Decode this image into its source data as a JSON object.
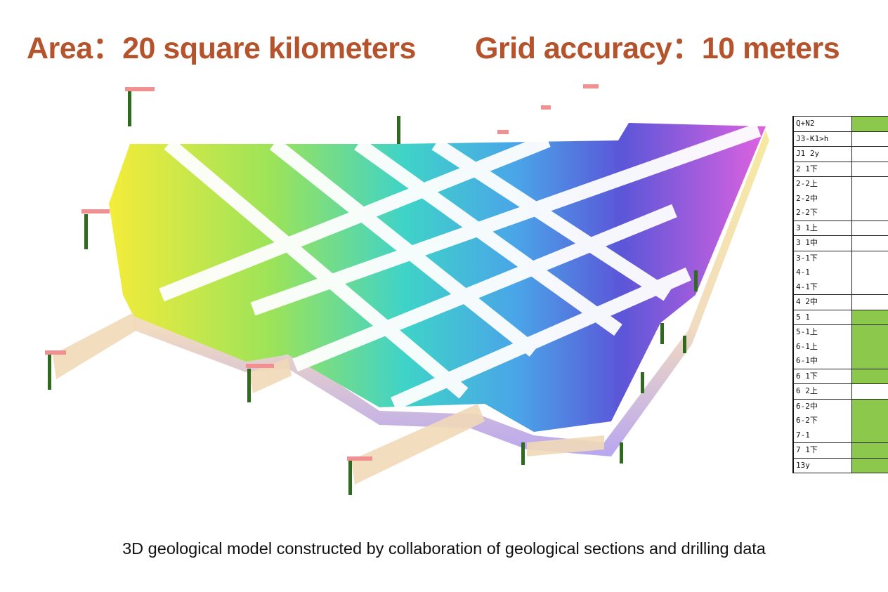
{
  "header": {
    "area": "Area：20 square kilometers",
    "grid": "Grid accuracy：10 meters"
  },
  "caption": "3D geological model constructed by collaboration of geological sections and drilling data",
  "colors": {
    "title": "#b5532c",
    "legend_green": "#8cc84b",
    "low": "#f2ee3a",
    "mid": "#3ad6c0",
    "high": "#d05ee0"
  },
  "legend": [
    {
      "rows": [
        "Q+N2"
      ],
      "fill": "green"
    },
    {
      "rows": [
        "J3-K1>h"
      ],
      "fill": "white"
    },
    {
      "rows": [
        "J1 2y"
      ],
      "fill": "white"
    },
    {
      "rows": [
        "2 1下"
      ],
      "fill": "white"
    },
    {
      "rows": [
        "2-2上",
        "2-2中",
        "2-2下"
      ],
      "fill": "white"
    },
    {
      "rows": [
        "3 1上"
      ],
      "fill": "white"
    },
    {
      "rows": [
        "3 1中"
      ],
      "fill": "white"
    },
    {
      "rows": [
        "3-1下",
        "4-1",
        "4-1下"
      ],
      "fill": "white"
    },
    {
      "rows": [
        "4 2中"
      ],
      "fill": "white"
    },
    {
      "rows": [
        "5 1"
      ],
      "fill": "green"
    },
    {
      "rows": [
        "5-1上",
        "6-1上",
        "6-1中"
      ],
      "fill": "green"
    },
    {
      "rows": [
        "6 1下"
      ],
      "fill": "green"
    },
    {
      "rows": [
        "6 2上"
      ],
      "fill": "white"
    },
    {
      "rows": [
        "6-2中",
        "6-2下",
        "7-1"
      ],
      "fill": "green"
    },
    {
      "rows": [
        "7 1下"
      ],
      "fill": "green"
    },
    {
      "rows": [
        "13y"
      ],
      "fill": "green"
    }
  ]
}
